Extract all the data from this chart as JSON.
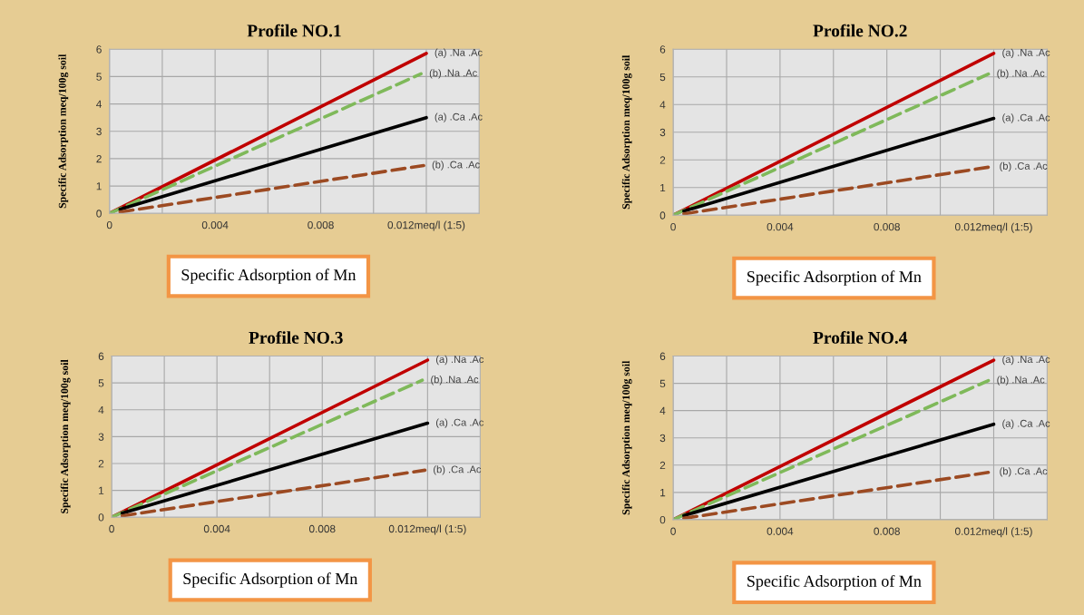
{
  "chart_data": [
    {
      "type": "line",
      "title": "Profile NO.1",
      "xlabel": "Specific Adsorption of Mn",
      "ylabel": "Specific Adsorption meq/100g soil",
      "xlim": [
        0,
        0.014
      ],
      "ylim": [
        0,
        6
      ],
      "xticks": [
        0,
        {
          "value": 0.002,
          "label": null
        },
        0.004,
        {
          "value": 0.006,
          "label": null
        },
        0.008,
        {
          "value": 0.01,
          "label": null
        },
        {
          "value": 0.012,
          "label": "0.012meq/l (1:5)"
        }
      ],
      "yticks": [
        0,
        1,
        2,
        3,
        4,
        5,
        6
      ],
      "grid": true,
      "legend": false,
      "marker": "none",
      "series": [
        {
          "name": "(a) .Na .Ac",
          "color": "#c00000",
          "line_style": "solid",
          "x": [
            0,
            0.012
          ],
          "values": [
            0,
            5.85
          ]
        },
        {
          "name": "(b) .Na .Ac",
          "color": "#7fb95a",
          "line_style": "dashed",
          "x": [
            0,
            0.0118
          ],
          "values": [
            0,
            5.1
          ]
        },
        {
          "name": "(a) .Ca .Ac",
          "color": "#000000",
          "line_style": "solid",
          "x": [
            0.0004,
            0.012
          ],
          "values": [
            0.15,
            3.5
          ]
        },
        {
          "name": "(b) .Ca .Ac",
          "color": "#9c4a22",
          "line_style": "dashed",
          "x": [
            0.0004,
            0.0119
          ],
          "values": [
            0.05,
            1.75
          ]
        }
      ]
    },
    {
      "type": "line",
      "title": "Profile NO.2",
      "xlabel": "Specific Adsorption of Mn",
      "ylabel": "Specific Adsorption meq/100g soil",
      "xlim": [
        0,
        0.014
      ],
      "ylim": [
        0,
        6
      ],
      "xticks": [
        0,
        {
          "value": 0.002,
          "label": null
        },
        0.004,
        {
          "value": 0.006,
          "label": null
        },
        0.008,
        {
          "value": 0.01,
          "label": null
        },
        {
          "value": 0.012,
          "label": "0.012meq/l (1:5)"
        }
      ],
      "yticks": [
        0,
        1,
        2,
        3,
        4,
        5,
        6
      ],
      "grid": true,
      "legend": false,
      "marker": "none",
      "series": [
        {
          "name": "(a) .Na .Ac",
          "color": "#c00000",
          "line_style": "solid",
          "x": [
            0,
            0.012
          ],
          "values": [
            0,
            5.85
          ]
        },
        {
          "name": "(b) .Na .Ac",
          "color": "#7fb95a",
          "line_style": "dashed",
          "x": [
            0,
            0.0118
          ],
          "values": [
            0,
            5.1
          ]
        },
        {
          "name": "(a) .Ca .Ac",
          "color": "#000000",
          "line_style": "solid",
          "x": [
            0.0004,
            0.012
          ],
          "values": [
            0.15,
            3.5
          ]
        },
        {
          "name": "(b) .Ca .Ac",
          "color": "#9c4a22",
          "line_style": "dashed",
          "x": [
            0.0004,
            0.0119
          ],
          "values": [
            0.05,
            1.75
          ]
        }
      ]
    },
    {
      "type": "line",
      "title": "Profile NO.3",
      "xlabel": "Specific Adsorption of Mn",
      "ylabel": "Specific Adsorption meq/100g soil",
      "xlim": [
        0,
        0.014
      ],
      "ylim": [
        0,
        6
      ],
      "xticks": [
        0,
        {
          "value": 0.002,
          "label": null
        },
        0.004,
        {
          "value": 0.006,
          "label": null
        },
        0.008,
        {
          "value": 0.01,
          "label": null
        },
        {
          "value": 0.012,
          "label": "0.012meq/l (1:5)"
        }
      ],
      "yticks": [
        0,
        1,
        2,
        3,
        4,
        5,
        6
      ],
      "grid": true,
      "legend": false,
      "marker": "none",
      "series": [
        {
          "name": "(a) .Na .Ac",
          "color": "#c00000",
          "line_style": "solid",
          "x": [
            0,
            0.012
          ],
          "values": [
            0,
            5.85
          ]
        },
        {
          "name": "(b) .Na .Ac",
          "color": "#7fb95a",
          "line_style": "dashed",
          "x": [
            0,
            0.0118
          ],
          "values": [
            0,
            5.1
          ]
        },
        {
          "name": "(a) .Ca .Ac",
          "color": "#000000",
          "line_style": "solid",
          "x": [
            0.0004,
            0.012
          ],
          "values": [
            0.15,
            3.5
          ]
        },
        {
          "name": "(b) .Ca .Ac",
          "color": "#9c4a22",
          "line_style": "dashed",
          "x": [
            0.0004,
            0.0119
          ],
          "values": [
            0.05,
            1.75
          ]
        }
      ]
    },
    {
      "type": "line",
      "title": "Profile NO.4",
      "xlabel": "Specific Adsorption of Mn",
      "ylabel": "Specific Adsorption meq/100g soil",
      "xlim": [
        0,
        0.014
      ],
      "ylim": [
        0,
        6
      ],
      "xticks": [
        0,
        {
          "value": 0.002,
          "label": null
        },
        0.004,
        {
          "value": 0.006,
          "label": null
        },
        0.008,
        {
          "value": 0.01,
          "label": null
        },
        {
          "value": 0.012,
          "label": "0.012meq/l (1:5)"
        }
      ],
      "yticks": [
        0,
        1,
        2,
        3,
        4,
        5,
        6
      ],
      "grid": true,
      "legend": false,
      "marker": "none",
      "series": [
        {
          "name": "(a) .Na .Ac",
          "color": "#c00000",
          "line_style": "solid",
          "x": [
            0,
            0.012
          ],
          "values": [
            0,
            5.85
          ]
        },
        {
          "name": "(b) .Na .Ac",
          "color": "#7fb95a",
          "line_style": "dashed",
          "x": [
            0,
            0.0118
          ],
          "values": [
            0,
            5.1
          ]
        },
        {
          "name": "(a) .Ca .Ac",
          "color": "#000000",
          "line_style": "solid",
          "x": [
            0.0004,
            0.012
          ],
          "values": [
            0.15,
            3.5
          ]
        },
        {
          "name": "(b) .Ca .Ac",
          "color": "#9c4a22",
          "line_style": "dashed",
          "x": [
            0.0004,
            0.0119
          ],
          "values": [
            0.05,
            1.75
          ]
        }
      ]
    }
  ]
}
